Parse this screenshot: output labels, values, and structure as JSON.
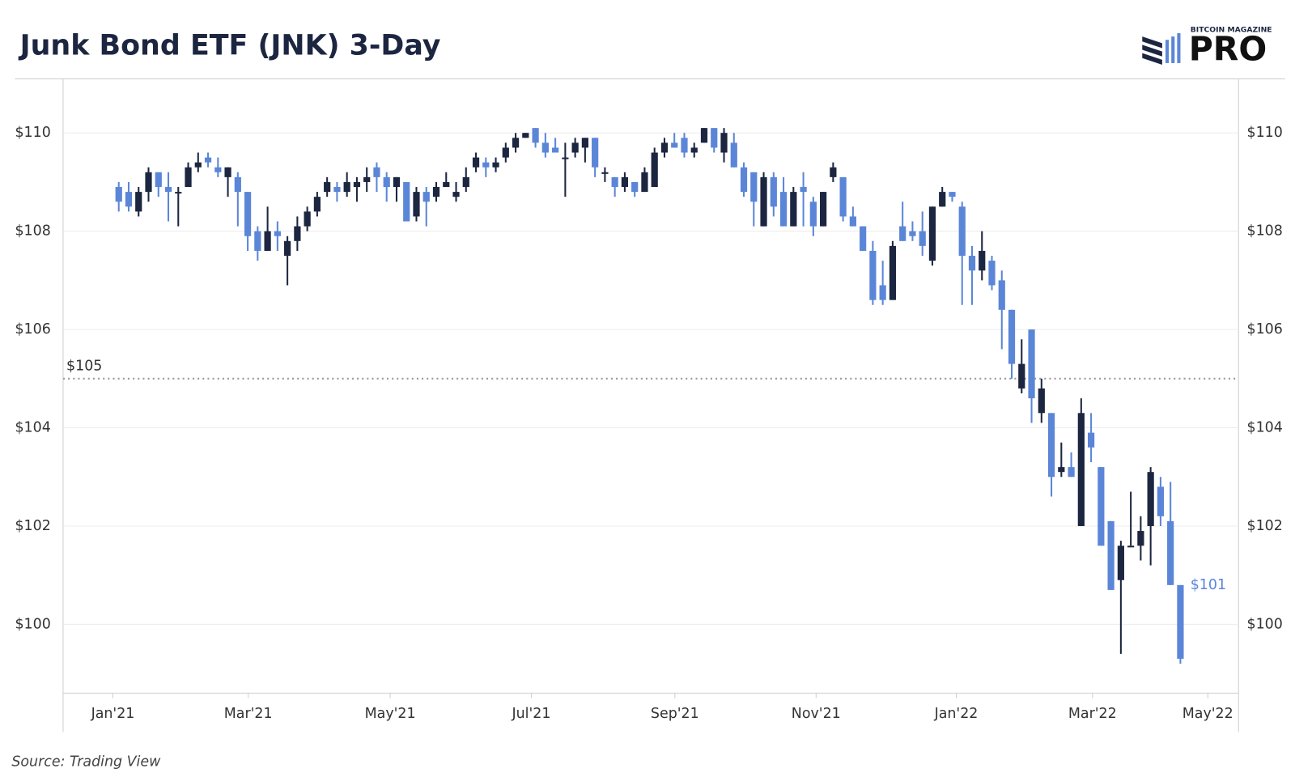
{
  "chart_data": {
    "type": "candlestick",
    "title": "Junk Bond ETF (JNK) 3-Day",
    "source": "Source: Trading View",
    "logo": {
      "top": "BITCOIN MAGAZINE",
      "main": "PRO"
    },
    "up_color": "#1c2640",
    "down_color": "#5b86d8",
    "grid": true,
    "x": [
      0,
      1,
      2,
      3,
      4,
      5,
      6,
      7,
      8,
      9,
      10,
      11,
      12,
      13,
      14,
      15,
      16,
      17,
      18,
      19,
      20,
      21,
      22,
      23,
      24,
      25,
      26,
      27,
      28,
      29,
      30,
      31,
      32,
      33,
      34,
      35,
      36,
      37,
      38,
      39,
      40,
      41,
      42,
      43,
      44,
      45,
      46,
      47,
      48,
      49,
      50,
      51,
      52,
      53,
      54,
      55,
      56,
      57,
      58,
      59,
      60,
      61,
      62,
      63,
      64,
      65,
      66,
      67,
      68,
      69,
      70,
      71,
      72,
      73,
      74,
      75,
      76,
      77,
      78,
      79,
      80,
      81,
      82,
      83,
      84,
      85,
      86,
      87,
      88,
      89,
      90,
      91,
      92,
      93,
      94,
      95,
      96,
      97,
      98,
      99,
      100,
      101,
      102,
      103,
      104,
      105,
      106,
      107
    ],
    "open": [
      108.9,
      108.8,
      108.4,
      108.8,
      109.2,
      108.9,
      108.8,
      108.9,
      109.3,
      109.5,
      109.3,
      109.1,
      109.1,
      108.8,
      108.0,
      107.6,
      108.0,
      107.5,
      107.8,
      108.1,
      108.4,
      108.8,
      108.9,
      108.8,
      108.9,
      109.0,
      109.3,
      109.1,
      108.9,
      109.0,
      108.3,
      108.8,
      108.7,
      108.9,
      108.7,
      108.9,
      109.3,
      109.4,
      109.3,
      109.5,
      109.7,
      109.9,
      110.1,
      109.8,
      109.7,
      109.5,
      109.6,
      109.7,
      109.9,
      109.2,
      109.1,
      108.9,
      109.0,
      108.8,
      108.9,
      109.6,
      109.8,
      109.9,
      109.6,
      109.8,
      110.1,
      109.6,
      109.8,
      109.3,
      109.2,
      108.1,
      109.1,
      108.8,
      108.1,
      108.9,
      108.6,
      108.1,
      109.1,
      109.1,
      108.3,
      108.1,
      107.6,
      106.9,
      106.6,
      108.1,
      108.0,
      108.0,
      107.4,
      108.5,
      108.8,
      108.5,
      107.5,
      107.2,
      107.4,
      107.0,
      106.4,
      104.8,
      106.0,
      104.3,
      104.3,
      103.1,
      103.2,
      102.0,
      103.9,
      103.2,
      102.1,
      100.9,
      101.6,
      101.6,
      102.0,
      102.8,
      102.1,
      100.8
    ],
    "high": [
      109.0,
      109.0,
      108.9,
      109.3,
      109.2,
      109.2,
      108.9,
      109.4,
      109.6,
      109.6,
      109.5,
      109.3,
      109.2,
      108.8,
      108.1,
      108.5,
      108.2,
      107.9,
      108.3,
      108.5,
      108.8,
      109.1,
      109.0,
      109.2,
      109.1,
      109.3,
      109.4,
      109.2,
      109.1,
      109.0,
      108.9,
      108.9,
      109.0,
      109.2,
      109.0,
      109.3,
      109.6,
      109.5,
      109.5,
      109.8,
      110.0,
      110.0,
      110.1,
      110.0,
      109.9,
      109.8,
      109.9,
      109.9,
      109.9,
      109.3,
      109.1,
      109.2,
      109.0,
      109.3,
      109.7,
      109.9,
      110.0,
      110.0,
      109.8,
      110.1,
      110.1,
      110.1,
      110.0,
      109.4,
      109.2,
      109.2,
      109.2,
      109.1,
      108.9,
      109.2,
      108.7,
      108.8,
      109.4,
      109.1,
      108.5,
      108.1,
      107.8,
      107.4,
      107.8,
      108.6,
      108.2,
      108.4,
      108.5,
      108.9,
      108.8,
      108.6,
      107.7,
      108.0,
      107.5,
      107.2,
      106.4,
      105.8,
      106.0,
      105.0,
      104.3,
      103.7,
      103.5,
      104.6,
      104.3,
      103.2,
      102.1,
      101.7,
      102.7,
      102.2,
      103.2,
      103.0,
      102.9,
      100.8
    ],
    "low": [
      108.4,
      108.4,
      108.3,
      108.6,
      108.7,
      108.2,
      108.1,
      108.9,
      109.2,
      109.3,
      109.1,
      108.7,
      108.1,
      107.6,
      107.4,
      107.6,
      107.6,
      106.9,
      107.6,
      108.0,
      108.3,
      108.7,
      108.6,
      108.7,
      108.6,
      108.8,
      108.8,
      108.6,
      108.6,
      108.2,
      108.2,
      108.1,
      108.6,
      108.9,
      108.6,
      108.8,
      109.2,
      109.1,
      109.2,
      109.4,
      109.6,
      109.9,
      109.7,
      109.5,
      109.6,
      108.7,
      109.5,
      109.4,
      109.1,
      109.0,
      108.7,
      108.8,
      108.7,
      108.8,
      108.9,
      109.5,
      109.7,
      109.5,
      109.5,
      109.8,
      109.6,
      109.4,
      109.3,
      108.7,
      108.1,
      108.1,
      108.3,
      108.1,
      108.1,
      108.1,
      107.9,
      108.1,
      109.0,
      108.2,
      108.1,
      107.6,
      106.5,
      106.5,
      106.6,
      107.8,
      107.8,
      107.5,
      107.3,
      108.5,
      108.6,
      106.5,
      106.5,
      107.0,
      106.8,
      105.6,
      105.0,
      104.7,
      104.1,
      104.1,
      102.6,
      103.0,
      103.0,
      102.0,
      103.3,
      101.6,
      100.7,
      99.4,
      101.6,
      101.3,
      101.2,
      102.0,
      100.8,
      99.2
    ],
    "close": [
      108.6,
      108.5,
      108.8,
      109.2,
      108.9,
      108.8,
      108.8,
      109.3,
      109.4,
      109.4,
      109.2,
      109.3,
      108.8,
      107.9,
      107.6,
      108.0,
      107.9,
      107.8,
      108.1,
      108.4,
      108.7,
      109.0,
      108.8,
      109.0,
      109.0,
      109.1,
      109.1,
      108.9,
      109.1,
      108.2,
      108.8,
      108.6,
      108.9,
      109.0,
      108.8,
      109.1,
      109.5,
      109.3,
      109.4,
      109.7,
      109.9,
      110.0,
      109.8,
      109.6,
      109.6,
      109.5,
      109.8,
      109.9,
      109.3,
      109.2,
      108.9,
      109.1,
      108.8,
      109.2,
      109.6,
      109.8,
      109.7,
      109.6,
      109.7,
      110.1,
      109.7,
      110.0,
      109.3,
      108.8,
      108.6,
      109.1,
      108.5,
      108.1,
      108.8,
      108.8,
      108.1,
      108.8,
      109.3,
      108.3,
      108.1,
      107.6,
      106.6,
      106.6,
      107.7,
      107.8,
      107.9,
      107.7,
      108.5,
      108.8,
      108.7,
      107.5,
      107.2,
      107.6,
      106.9,
      106.4,
      105.3,
      105.3,
      104.6,
      104.8,
      103.0,
      103.2,
      103.0,
      104.3,
      103.6,
      101.6,
      100.7,
      101.6,
      101.6,
      101.9,
      103.1,
      102.2,
      100.8,
      99.3
    ],
    "xlim": [
      -5.61,
      112.86
    ],
    "xticks": [
      {
        "value": -0.59,
        "label": "Jan'21"
      },
      {
        "value": 13.05,
        "label": "Mar'21"
      },
      {
        "value": 27.36,
        "label": "May'21"
      },
      {
        "value": 41.58,
        "label": "Jul'21"
      },
      {
        "value": 56.05,
        "label": "Sep'21"
      },
      {
        "value": 70.28,
        "label": "Nov'21"
      },
      {
        "value": 84.41,
        "label": "Jan'22"
      },
      {
        "value": 98.14,
        "label": "Mar'22"
      },
      {
        "value": 109.76,
        "label": "May'22"
      }
    ],
    "ylim": [
      98.6,
      111.1
    ],
    "yticks": [
      {
        "value": 100,
        "label": "$100"
      },
      {
        "value": 102,
        "label": "$102"
      },
      {
        "value": 104,
        "label": "$104"
      },
      {
        "value": 106,
        "label": "$106"
      },
      {
        "value": 108,
        "label": "$108"
      },
      {
        "value": 110,
        "label": "$110"
      }
    ],
    "reference_line": {
      "value": 105,
      "label": "$105"
    },
    "last_label": {
      "value": 100.8,
      "label": "$101"
    }
  }
}
